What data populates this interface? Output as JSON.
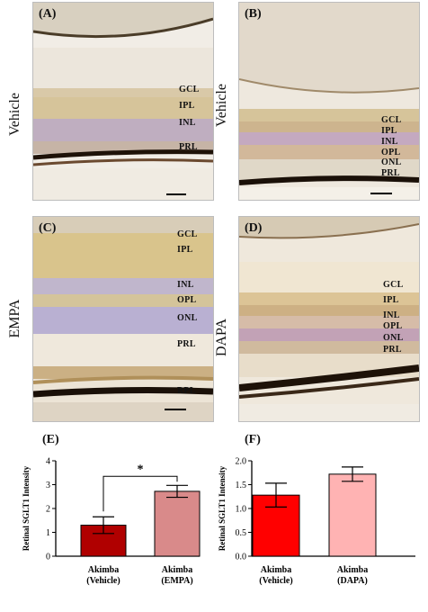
{
  "panels": [
    {
      "label": "(A)",
      "side": "Vehicle",
      "layers": [
        "GCL",
        "IPL",
        "INL",
        "PRL"
      ]
    },
    {
      "label": "(B)",
      "side": "Vehicle",
      "layers": [
        "GCL",
        "IPL",
        "INL",
        "OPL",
        "ONL",
        "PRL"
      ]
    },
    {
      "label": "(C)",
      "side": "EMPA",
      "layers": [
        "GCL",
        "IPL",
        "INL",
        "OPL",
        "ONL",
        "PRL",
        "RPL"
      ]
    },
    {
      "label": "(D)",
      "side": "DAPA",
      "layers": [
        "GCL",
        "IPL",
        "INL",
        "OPL",
        "ONL",
        "PRL"
      ]
    }
  ],
  "colors": {
    "bar_vehicle_E": "#b00000",
    "bar_empa": "#d98a8a",
    "bar_vehicle_F": "#ff0000",
    "bar_dapa": "#ffb3b3"
  },
  "chart_data": [
    {
      "type": "bar",
      "panel_label": "(E)",
      "ylabel": "Retinal SGLT1 Intensity",
      "categories": [
        "Akimba\n(Vehicle)",
        "Akimba\n(EMPA)"
      ],
      "category_lines": [
        [
          "Akimba",
          "(Vehicle)"
        ],
        [
          "Akimba",
          "(EMPA)"
        ]
      ],
      "values": [
        1.3,
        2.72
      ],
      "errors": [
        0.35,
        0.25
      ],
      "ylim": [
        0,
        4
      ],
      "yticks": [
        "0",
        "1",
        "2",
        "3",
        "4"
      ],
      "significance": "*"
    },
    {
      "type": "bar",
      "panel_label": "(F)",
      "ylabel": "Retinal SGLT1 Intensity",
      "categories": [
        "Akimba\n(Vehicle)",
        "Akimba\n(DAPA)"
      ],
      "category_lines": [
        [
          "Akimba",
          "(Vehicle)"
        ],
        [
          "Akimba",
          "(DAPA)"
        ]
      ],
      "values": [
        1.28,
        1.72
      ],
      "errors": [
        0.25,
        0.15
      ],
      "ylim": [
        0,
        2.0
      ],
      "yticks": [
        "0.0",
        "0.5",
        "1.0",
        "1.5",
        "2.0"
      ]
    }
  ]
}
